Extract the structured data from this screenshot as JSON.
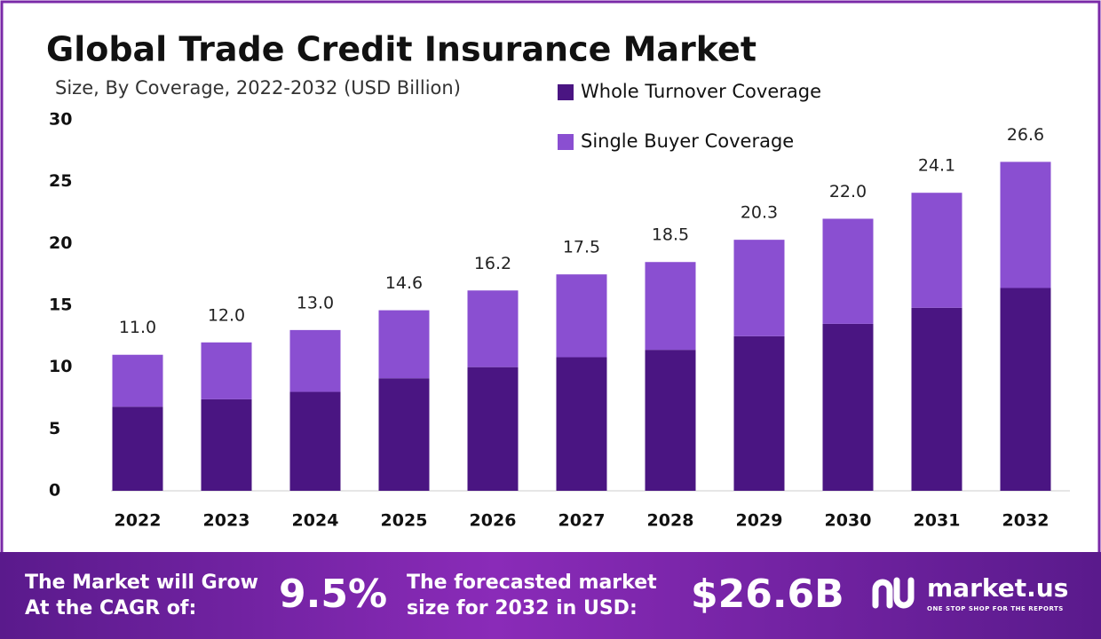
{
  "chart_data": {
    "type": "stacked-bar",
    "title": "Global Trade Credit Insurance Market",
    "subtitle": "Size, By Coverage, 2022-2032 (USD Billion)",
    "categories": [
      "2022",
      "2023",
      "2024",
      "2025",
      "2026",
      "2027",
      "2028",
      "2029",
      "2030",
      "2031",
      "2032"
    ],
    "series": [
      {
        "name": "Whole Turnover Coverage",
        "color": "#4a1582",
        "values": [
          6.8,
          7.4,
          8.0,
          9.1,
          10.0,
          10.8,
          11.4,
          12.5,
          13.5,
          14.8,
          16.4
        ]
      },
      {
        "name": "Single Buyer Coverage",
        "color": "#8a4fd1",
        "values": [
          4.2,
          4.6,
          5.0,
          5.5,
          6.2,
          6.7,
          7.1,
          7.8,
          8.5,
          9.3,
          10.2
        ]
      }
    ],
    "totals": [
      11,
      12,
      13,
      14.6,
      16.2,
      17.5,
      18.5,
      20.3,
      22,
      24.1,
      26.6
    ],
    "total_labels": [
      "11.0",
      "12.0",
      "13.0",
      "14.6",
      "16.2",
      "17.5",
      "18.5",
      "20.3",
      "22.0",
      "24.1",
      "26.6"
    ],
    "ylim": [
      0,
      30
    ],
    "yticks": [
      0,
      5,
      10,
      15,
      20,
      25,
      30
    ],
    "grid": false
  },
  "footer": {
    "cagr_line1": "The Market will Grow",
    "cagr_line2": "At the CAGR of:",
    "cagr_value": "9.5%",
    "forecast_line1": "The forecasted market",
    "forecast_line2": "size for 2032 in USD:",
    "forecast_value": "$26.6B",
    "brand": "market.us",
    "tagline": "ONE STOP SHOP FOR THE REPORTS"
  }
}
